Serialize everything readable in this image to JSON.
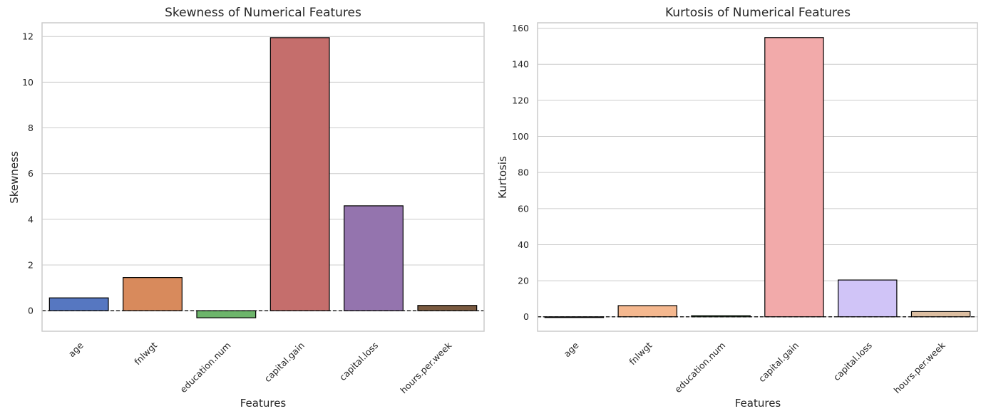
{
  "chart_data": [
    {
      "type": "bar",
      "title": "Skewness of Numerical Features",
      "xlabel": "Features",
      "ylabel": "Skewness",
      "categories": [
        "age",
        "fnlwgt",
        "education.num",
        "capital.gain",
        "capital.loss",
        "hours.per.week"
      ],
      "values": [
        0.56,
        1.45,
        -0.31,
        11.95,
        4.59,
        0.23
      ],
      "colors": [
        "#5677c1",
        "#d88a5c",
        "#6db56b",
        "#c56e6c",
        "#9474ae",
        "#7a5a40"
      ],
      "ylim": [
        -0.9,
        12.6
      ],
      "yticks": [
        0,
        2,
        4,
        6,
        8,
        10,
        12
      ],
      "reference_line": 0,
      "grid": true,
      "legend": "none"
    },
    {
      "type": "bar",
      "title": "Kurtosis of Numerical Features",
      "xlabel": "Features",
      "ylabel": "Kurtosis",
      "categories": [
        "age",
        "fnlwgt",
        "education.num",
        "capital.gain",
        "capital.loss",
        "hours.per.week"
      ],
      "values": [
        -0.17,
        6.2,
        0.62,
        154.8,
        20.4,
        2.9
      ],
      "colors": [
        "#4c6ec0",
        "#f5b88f",
        "#8fdc8f",
        "#f2aaaa",
        "#d0c4f7",
        "#dcbea1"
      ],
      "ylim": [
        -8,
        163
      ],
      "yticks": [
        0,
        20,
        40,
        60,
        80,
        100,
        120,
        140,
        160
      ],
      "reference_line": 0,
      "grid": true,
      "legend": "none"
    }
  ]
}
